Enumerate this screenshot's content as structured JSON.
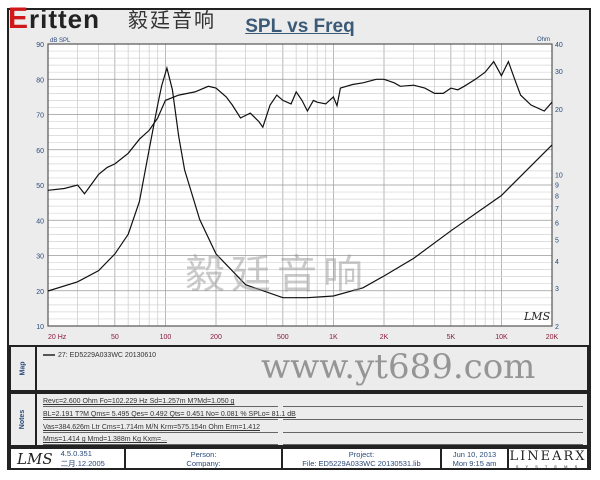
{
  "logo": {
    "brand": "ritten",
    "brand_initial": "E",
    "brand_cn": "毅廷音响"
  },
  "chart_data": {
    "type": "line",
    "title": "SPL vs Freq",
    "xscale": "log",
    "xlim": [
      20,
      20000
    ],
    "xticks": [
      {
        "v": 20,
        "l": "20 Hz"
      },
      {
        "v": 50,
        "l": "50"
      },
      {
        "v": 100,
        "l": "100"
      },
      {
        "v": 200,
        "l": "200"
      },
      {
        "v": 500,
        "l": "500"
      },
      {
        "v": 1000,
        "l": "1K"
      },
      {
        "v": 2000,
        "l": "2K"
      },
      {
        "v": 5000,
        "l": "5K"
      },
      {
        "v": 10000,
        "l": "10K"
      },
      {
        "v": 20000,
        "l": "20K"
      }
    ],
    "ylabel": "dB SPL",
    "ylim": [
      10,
      90
    ],
    "yticks": [
      10,
      20,
      30,
      40,
      50,
      60,
      70,
      80,
      90
    ],
    "y2label": "Ohm",
    "y2scale": "log",
    "y2lim": [
      2,
      40
    ],
    "y2ticks": [
      2,
      3,
      4,
      5,
      6,
      7,
      8,
      9,
      10,
      20,
      30,
      40
    ],
    "grid": true,
    "series": [
      {
        "axis": "left",
        "points": [
          [
            20,
            48.5
          ],
          [
            25,
            49
          ],
          [
            30,
            50
          ],
          [
            33,
            47.5
          ],
          [
            36,
            50
          ],
          [
            40,
            53
          ],
          [
            45,
            55
          ],
          [
            50,
            56
          ],
          [
            60,
            59
          ],
          [
            70,
            63
          ],
          [
            80,
            65.5
          ],
          [
            90,
            69
          ],
          [
            100,
            74
          ],
          [
            120,
            75.5
          ],
          [
            150,
            76.4
          ],
          [
            180,
            78
          ],
          [
            200,
            77.5
          ],
          [
            230,
            75
          ],
          [
            250,
            72.7
          ],
          [
            280,
            69
          ],
          [
            320,
            70.4
          ],
          [
            360,
            68
          ],
          [
            380,
            66.4
          ],
          [
            420,
            72.7
          ],
          [
            460,
            75.5
          ],
          [
            500,
            74
          ],
          [
            560,
            73
          ],
          [
            600,
            76.4
          ],
          [
            650,
            74
          ],
          [
            700,
            71
          ],
          [
            760,
            74
          ],
          [
            800,
            73.5
          ],
          [
            900,
            73
          ],
          [
            1000,
            75
          ],
          [
            1050,
            72.5
          ],
          [
            1100,
            77.5
          ],
          [
            1300,
            78.5
          ],
          [
            1500,
            79
          ],
          [
            1800,
            80
          ],
          [
            2000,
            80
          ],
          [
            2300,
            79
          ],
          [
            2500,
            78
          ],
          [
            3000,
            78.3
          ],
          [
            3500,
            77.5
          ],
          [
            4000,
            76
          ],
          [
            4500,
            76
          ],
          [
            5000,
            77.5
          ],
          [
            5500,
            77
          ],
          [
            6000,
            78
          ],
          [
            7000,
            80
          ],
          [
            8000,
            82
          ],
          [
            9000,
            85
          ],
          [
            10000,
            81
          ],
          [
            11000,
            85
          ],
          [
            12000,
            80
          ],
          [
            13000,
            75.5
          ],
          [
            15000,
            72.7
          ],
          [
            18000,
            71
          ],
          [
            20000,
            73.5
          ]
        ]
      },
      {
        "axis": "right",
        "points": [
          [
            20,
            2.9
          ],
          [
            30,
            3.2
          ],
          [
            40,
            3.6
          ],
          [
            50,
            4.3
          ],
          [
            60,
            5.3
          ],
          [
            70,
            7.5
          ],
          [
            80,
            13
          ],
          [
            90,
            21
          ],
          [
            95,
            25.7
          ],
          [
            102,
            31
          ],
          [
            110,
            24.6
          ],
          [
            120,
            15
          ],
          [
            130,
            10.5
          ],
          [
            160,
            6.2
          ],
          [
            200,
            4.3
          ],
          [
            300,
            3.1
          ],
          [
            500,
            2.7
          ],
          [
            700,
            2.7
          ],
          [
            1000,
            2.75
          ],
          [
            1500,
            3
          ],
          [
            2000,
            3.4
          ],
          [
            3000,
            4.1
          ],
          [
            5000,
            5.5
          ],
          [
            10000,
            8
          ],
          [
            20000,
            13.7
          ]
        ]
      }
    ],
    "annotation": "LMS"
  },
  "map": {
    "label": "Map",
    "entry": "27: ED5229A033WC  20130610"
  },
  "notes": {
    "label": "Notes",
    "lines": [
      "Revc=2.600 Ohm  Fo=102.229 Hz  Sd=1.257m M?Md=1.050 g",
      "BL=2.191 T?M  Qms= 5.495  Qes= 0.492  Qts= 0.451  No= 0.081 %  SPLo= 81.1 dB",
      "Vas=384.626m Ltr  Cms=1.714m M/N  Krm=575.154n Ohm  Erm=1.412",
      "Mms=1.414 g  Mmd=1.388m Kg  Kxm=..."
    ]
  },
  "footer": {
    "app": "LMS",
    "version": "4.5.0.351",
    "build_date": "二月.12.2005",
    "person": "Person:",
    "company": "Company:",
    "project": "Project:",
    "file": "File: ED5229A033WC  20130531.lib",
    "date": "Jun 10, 2013",
    "time": "Mon  9:15 am",
    "vendor": "LINEARX",
    "vendor_sub": "S Y S T E M S"
  },
  "watermark": {
    "url": "www.yt689.com",
    "cn": "毅廷音响"
  }
}
